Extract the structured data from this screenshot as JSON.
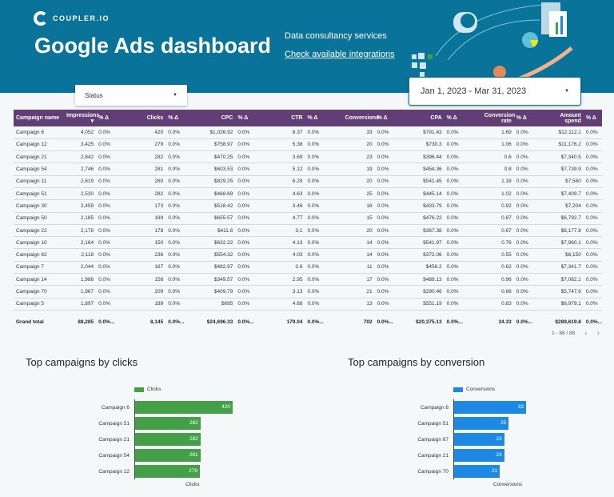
{
  "header": {
    "logo": "COUPLER.IO",
    "title": "Google Ads dashboard",
    "link_services": "Data consultancy services",
    "link_integrations": "Check available integrations"
  },
  "filters": {
    "status_label": "Status",
    "date_range": "Jan 1, 2023 - Mar 31, 2023"
  },
  "table": {
    "columns": [
      "Campaign name",
      "Impressions",
      "% Δ",
      "Clicks",
      "% Δ",
      "CPC",
      "% Δ",
      "CTR",
      "% Δ",
      "Conversions",
      "% Δ",
      "CPA",
      "% Δ",
      "Conversion rate",
      "% Δ",
      "Amount spend",
      "% Δ"
    ],
    "sort_indicator": "▾",
    "rows": [
      [
        "Campaign 6",
        "4,052",
        "0.0%",
        "420",
        "0.0%",
        "$1,026.92",
        "0.0%",
        "8.37",
        "0.0%",
        "33",
        "0.0%",
        "$791.43",
        "0.0%",
        "1.69",
        "0.0%",
        "$12,112.1",
        "0.0%"
      ],
      [
        "Campaign 12",
        "3,425",
        "0.0%",
        "279",
        "0.0%",
        "$758.97",
        "0.0%",
        "5.38",
        "0.0%",
        "20",
        "0.0%",
        "$730.3",
        "0.0%",
        "1.06",
        "0.0%",
        "$11,176.2",
        "0.0%"
      ],
      [
        "Campaign 21",
        "2,842",
        "0.0%",
        "282",
        "0.0%",
        "$470.25",
        "0.0%",
        "3.69",
        "0.0%",
        "23",
        "0.0%",
        "$396.44",
        "0.0%",
        "0.6",
        "0.0%",
        "$7,340.5",
        "0.0%"
      ],
      [
        "Campaign 54",
        "2,746",
        "0.0%",
        "281",
        "0.0%",
        "$603.53",
        "0.0%",
        "5.12",
        "0.0%",
        "19",
        "0.0%",
        "$454.36",
        "0.0%",
        "0.8",
        "0.0%",
        "$7,739.9",
        "0.0%"
      ],
      [
        "Campaign 11",
        "2,619",
        "0.0%",
        "260",
        "0.0%",
        "$829.25",
        "0.0%",
        "6.29",
        "0.0%",
        "20",
        "0.0%",
        "$541.45",
        "0.0%",
        "1.18",
        "0.0%",
        "$7,560",
        "0.0%"
      ],
      [
        "Campaign 51",
        "2,530",
        "0.0%",
        "282",
        "0.0%",
        "$468.69",
        "0.0%",
        "4.63",
        "0.0%",
        "25",
        "0.0%",
        "$445.14",
        "0.0%",
        "1.02",
        "0.0%",
        "$7,409.7",
        "0.0%"
      ],
      [
        "Campaign 30",
        "2,459",
        "0.0%",
        "173",
        "0.0%",
        "$518.42",
        "0.0%",
        "3.46",
        "0.0%",
        "18",
        "0.0%",
        "$433.79",
        "0.0%",
        "0.92",
        "0.0%",
        "$7,204",
        "0.0%"
      ],
      [
        "Campaign 50",
        "2,185",
        "0.0%",
        "189",
        "0.0%",
        "$655.57",
        "0.0%",
        "4.77",
        "0.0%",
        "15",
        "0.0%",
        "$476.22",
        "0.0%",
        "0.87",
        "0.0%",
        "$6,792.7",
        "0.0%"
      ],
      [
        "Campaign 22",
        "2,178",
        "0.0%",
        "178",
        "0.0%",
        "$411.6",
        "0.0%",
        "3.1",
        "0.0%",
        "20",
        "0.0%",
        "$367.38",
        "0.0%",
        "0.67",
        "0.0%",
        "$6,177.8",
        "0.0%"
      ],
      [
        "Campaign 10",
        "2,164",
        "0.0%",
        "150",
        "0.0%",
        "$632.22",
        "0.0%",
        "4.13",
        "0.0%",
        "14",
        "0.0%",
        "$541.97",
        "0.0%",
        "0.76",
        "0.0%",
        "$7,960.1",
        "0.0%"
      ],
      [
        "Campaign 62",
        "2,118",
        "0.0%",
        "236",
        "0.0%",
        "$554.32",
        "0.0%",
        "4.03",
        "0.0%",
        "14",
        "0.0%",
        "$372.06",
        "0.0%",
        "0.55",
        "0.0%",
        "$6,150",
        "0.0%"
      ],
      [
        "Campaign 7",
        "2,044",
        "0.0%",
        "167",
        "0.0%",
        "$482.97",
        "0.0%",
        "3.6",
        "0.0%",
        "11",
        "0.0%",
        "$456.2",
        "0.0%",
        "0.62",
        "0.0%",
        "$7,341.7",
        "0.0%"
      ],
      [
        "Campaign 14",
        "1,986",
        "0.0%",
        "158",
        "0.0%",
        "$349.57",
        "0.0%",
        "2.95",
        "0.0%",
        "17",
        "0.0%",
        "$488.13",
        "0.0%",
        "0.96",
        "0.0%",
        "$7,082.1",
        "0.0%"
      ],
      [
        "Campaign 70",
        "1,967",
        "0.0%",
        "209",
        "0.0%",
        "$409.79",
        "0.0%",
        "3.13",
        "0.0%",
        "21",
        "0.0%",
        "$290.46",
        "0.0%",
        "0.66",
        "0.0%",
        "$5,747.6",
        "0.0%"
      ],
      [
        "Campaign 5",
        "1,897",
        "0.0%",
        "189",
        "0.0%",
        "$695",
        "0.0%",
        "4.68",
        "0.0%",
        "13",
        "0.0%",
        "$551.19",
        "0.0%",
        "0.83",
        "0.0%",
        "$6,979.1",
        "0.0%"
      ]
    ],
    "total": [
      "Grand total",
      "88,285",
      "0.0%...",
      "8,145",
      "0.0%...",
      "$24,696.33",
      "0.0%...",
      "179.04",
      "0.0%...",
      "702",
      "0.0%...",
      "$20,375.13",
      "0.0%...",
      "34.33",
      "0.0%...",
      "$289,619.8",
      "0.0%..."
    ],
    "pagination": "1 - 88 / 88"
  },
  "chart_data": [
    {
      "type": "bar",
      "orientation": "horizontal",
      "title": "Top campaigns by clicks",
      "categories": [
        "Campaign 6",
        "Campaign 51",
        "Campaign 21",
        "Campaign 54",
        "Campaign 12"
      ],
      "series": [
        {
          "name": "Clicks",
          "values": [
            420,
            282,
            282,
            281,
            279
          ]
        }
      ],
      "xlabel": "Clicks",
      "color": "#43a047",
      "legend": "top-left"
    },
    {
      "type": "bar",
      "orientation": "horizontal",
      "title": "Top campaigns by conversion",
      "categories": [
        "Campaign 6",
        "Campaign 51",
        "Campaign 67",
        "Campaign 21",
        "Campaign 70"
      ],
      "series": [
        {
          "name": "Conversions",
          "values": [
            33,
            25,
            23,
            23,
            21
          ]
        }
      ],
      "xlabel": "Conversions",
      "color": "#1e88e5",
      "legend": "top-left"
    }
  ],
  "colors": {
    "header": "#0a7399",
    "table_header": "#623e76"
  }
}
